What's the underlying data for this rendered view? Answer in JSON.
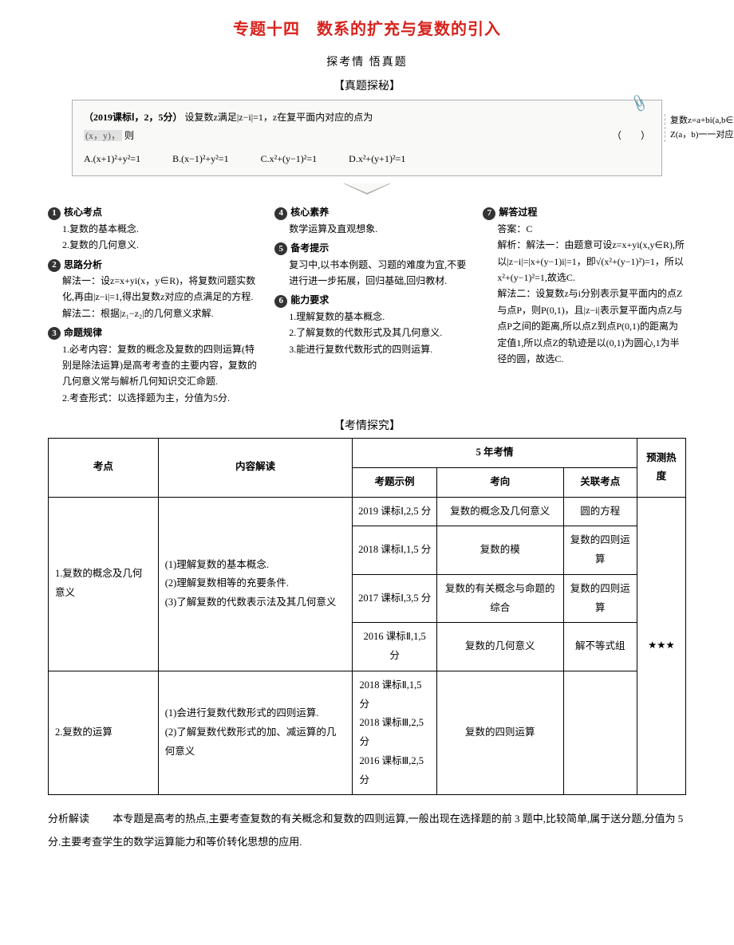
{
  "title": "专题十四　数系的扩充与复数的引入",
  "subtitle1": "探考情  悟真题",
  "subtitle2": "【真题探秘】",
  "question": {
    "stem_prefix": "（2019课标Ⅰ，2，5分）",
    "stem_body": "设复数z满足|z−i|=1，z在复平面内对应的点为",
    "stem_gray": "(x，y)，",
    "stem_tail": "则",
    "paren": "（　　）",
    "opts": {
      "A": "A.(x+1)²+y²=1",
      "B": "B.(x−1)²+y²=1",
      "C": "C.x²+(y−1)²=1",
      "D": "D.x²+(y+1)²=1"
    }
  },
  "annot": "复数z=a+bi(a,b∈R）与复平面内的点Z(a，b)一一对应。",
  "cols": {
    "c1": {
      "t1": "核心考点",
      "l1a": "1.复数的基本概念.",
      "l1b": "2.复数的几何意义.",
      "t2": "思路分析",
      "l2a": "解法一：设z=x+yi(x，y∈R)，将复数问题实数化,再由|z−i|=1,得出复数z对应的点满足的方程.解法二：根据|z₁−z₂|的几何意义求解.",
      "t3": "命题规律",
      "l3a": "1.必考内容：复数的概念及复数的四则运算(特别是除法运算)是高考考查的主要内容，复数的几何意义常与解析几何知识交汇命题.",
      "l3b": "2.考查形式：以选择题为主，分值为5分."
    },
    "c2": {
      "t4": "核心素养",
      "l4a": "数学运算及直观想象.",
      "t5": "备考提示",
      "l5a": "复习中,以书本例题、习题的难度为宜,不要进行进一步拓展，回归基础,回归教材.",
      "t6": "能力要求",
      "l6a": "1.理解复数的基本概念.",
      "l6b": "2.了解复数的代数形式及其几何意义.",
      "l6c": "3.能进行复数代数形式的四则运算."
    },
    "c3": {
      "t7": "解答过程",
      "ans": "答案：C",
      "exp": "解析：解法一：由题意可设z=x+yi(x,y∈R),所以|z−i|=|x+(y−1)i|=1，即√(x²+(y−1)²)=1，所以x²+(y−1)²=1,故选C.",
      "exp2": "解法二：设复数z与i分别表示复平面内的点Z与点P，则P(0,1)，且|z−i|表示复平面内点Z与点P之间的距离,所以点Z到点P(0,1)的距离为定值1,所以点Z的轨迹是以(0,1)为圆心,1为半径的圆，故选C."
    }
  },
  "subtitle3": "【考情探究】",
  "table": {
    "headers": {
      "kd": "考点",
      "jd": "内容解读",
      "kq": "5 年考情",
      "sl": "考题示例",
      "kx": "考向",
      "gl": "关联考点",
      "yc": "预测热度"
    },
    "r1_kd": "1.复数的概念及几何意义",
    "r1_jd": "(1)理解复数的基本概念.\n(2)理解复数相等的充要条件.\n(3)了解复数的代数表示法及其几何意义",
    "r1a_sl": "2019 课标Ⅰ,2,5 分",
    "r1a_kx": "复数的概念及几何意义",
    "r1a_gl": "圆的方程",
    "r1b_sl": "2018 课标Ⅰ,1,5 分",
    "r1b_kx": "复数的模",
    "r1b_gl": "复数的四则运算",
    "r1c_sl": "2017 课标Ⅰ,3,5 分",
    "r1c_kx": "复数的有关概念与命题的综合",
    "r1c_gl": "复数的四则运算",
    "r1d_sl": "2016 课标Ⅱ,1,5 分",
    "r1d_kx": "复数的几何意义",
    "r1d_gl": "解不等式组",
    "r2_kd": "2.复数的运算",
    "r2_jd": "(1)会进行复数代数形式的四则运算.\n(2)了解复数代数形式的加、减运算的几何意义",
    "r2_sl": "2018 课标Ⅱ,1,5 分\n2018 课标Ⅲ,2,5 分\n2016 课标Ⅲ,2,5 分",
    "r2_kx": "复数的四则运算",
    "r2_gl": "",
    "heat": "★★★"
  },
  "analysis_label": "分析解读",
  "analysis": "　　本专题是高考的热点,主要考查复数的有关概念和复数的四则运算,一般出现在选择题的前 3 题中,比较简单,属于送分题,分值为 5 分.主要考查学生的数学运算能力和等价转化思想的应用."
}
